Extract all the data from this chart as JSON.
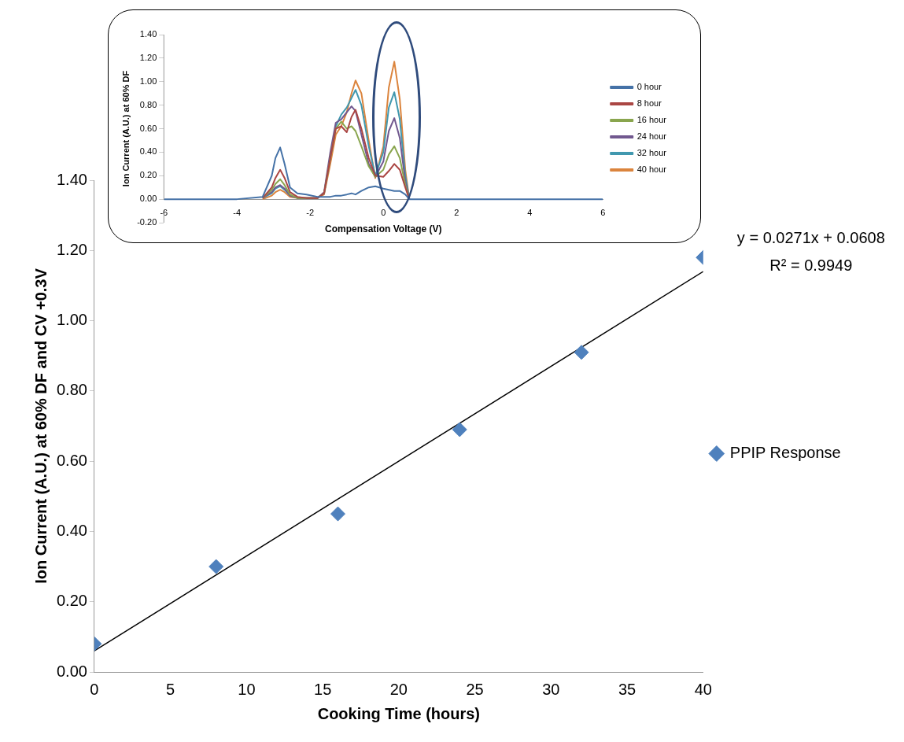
{
  "chart_data": [
    {
      "type": "scatter",
      "xlabel": "Cooking Time (hours)",
      "ylabel": "Ion Current (A.U.) at 60% DF and CV +0.3V",
      "xlim": [
        0,
        40
      ],
      "xticks": [
        0,
        5,
        10,
        15,
        20,
        25,
        30,
        35,
        40
      ],
      "ylim": [
        0,
        1.4
      ],
      "yticks": [
        {
          "value": 0,
          "label": "0.00"
        },
        {
          "value": 0.2,
          "label": "0.20"
        },
        {
          "value": 0.4,
          "label": "0.40"
        },
        {
          "value": 0.6,
          "label": "0.60"
        },
        {
          "value": 0.8,
          "label": "0.80"
        },
        {
          "value": 1,
          "label": "1.00"
        },
        {
          "value": 1.2,
          "label": "1.20"
        },
        {
          "value": 1.4,
          "label": "1.40"
        }
      ],
      "x": [
        0,
        8,
        16,
        24,
        32,
        40
      ],
      "series": [
        {
          "name": "PPIP Response",
          "color": "#4f81bd",
          "marker": "diamond",
          "values": [
            0.08,
            0.3,
            0.45,
            0.69,
            0.91,
            1.18
          ]
        },
        {
          "type": "line",
          "color": "#000000",
          "x": [
            0,
            40
          ],
          "values": [
            0.06,
            1.14
          ]
        }
      ],
      "annotations": [
        "y = 0.0271x + 0.0608",
        "R² = 0.9949"
      ],
      "grid": false,
      "legend": "right"
    },
    {
      "type": "line",
      "xlabel": "Compensation Voltage (V)",
      "ylabel": "Ion Current (A.U.) at 60% DF",
      "xlim": [
        -6,
        6
      ],
      "xticks": [
        -6,
        -4,
        -2,
        0,
        2,
        4,
        6
      ],
      "ylim": [
        -0.2,
        1.4
      ],
      "yticks": [
        {
          "value": -0.2,
          "label": "-0.20"
        },
        {
          "value": 0,
          "label": "0.00"
        },
        {
          "value": 0.2,
          "label": "0.20"
        },
        {
          "value": 0.4,
          "label": "0.40"
        },
        {
          "value": 0.6,
          "label": "0.60"
        },
        {
          "value": 0.8,
          "label": "0.80"
        },
        {
          "value": 1,
          "label": "1.00"
        },
        {
          "value": 1.2,
          "label": "1.20"
        },
        {
          "value": 1.4,
          "label": "1.40"
        }
      ],
      "x": [
        -6,
        -5,
        -4,
        -3.3,
        -3.05,
        -2.95,
        -2.82,
        -2.7,
        -2.55,
        -2.35,
        -2.1,
        -1.8,
        -1.62,
        -1.45,
        -1.3,
        -1.15,
        -1.0,
        -0.87,
        -0.76,
        -0.6,
        -0.4,
        -0.22,
        0,
        0.15,
        0.3,
        0.45,
        0.6,
        0.71,
        1,
        2,
        3,
        4,
        5,
        6
      ],
      "series": [
        {
          "name": "0 hour",
          "color": "#4572a7",
          "values": [
            0,
            0,
            0,
            0.02,
            0.2,
            0.35,
            0.44,
            0.3,
            0.1,
            0.05,
            0.04,
            0.02,
            0.02,
            0.02,
            0.03,
            0.03,
            0.04,
            0.05,
            0.04,
            0.07,
            0.1,
            0.11,
            0.09,
            0.08,
            0.07,
            0.07,
            0.04,
            0,
            0,
            0,
            0,
            0,
            0,
            0
          ]
        },
        {
          "name": "8 hour",
          "color": "#aa4643",
          "values": [
            null,
            null,
            null,
            0.01,
            0.1,
            0.18,
            0.25,
            0.18,
            0.06,
            0.02,
            0.01,
            0.01,
            0.05,
            0.35,
            0.6,
            0.62,
            0.57,
            0.7,
            0.76,
            0.6,
            0.35,
            0.2,
            0.19,
            0.24,
            0.3,
            0.25,
            0.1,
            0,
            null,
            null,
            null,
            null,
            null,
            null
          ]
        },
        {
          "name": "16 hour",
          "color": "#89a54e",
          "values": [
            null,
            null,
            null,
            0.01,
            0.08,
            0.13,
            0.17,
            0.12,
            0.04,
            0.01,
            0.01,
            0.01,
            0.05,
            0.35,
            0.6,
            0.66,
            0.6,
            0.62,
            0.58,
            0.45,
            0.28,
            0.19,
            0.25,
            0.38,
            0.45,
            0.35,
            0.12,
            0,
            null,
            null,
            null,
            null,
            null,
            null
          ]
        },
        {
          "name": "24 hour",
          "color": "#71588f",
          "values": [
            null,
            null,
            null,
            0.01,
            0.06,
            0.1,
            0.12,
            0.09,
            0.03,
            0.01,
            0.01,
            0.01,
            0.06,
            0.4,
            0.65,
            0.68,
            0.74,
            0.79,
            0.75,
            0.55,
            0.3,
            0.19,
            0.32,
            0.58,
            0.69,
            0.52,
            0.15,
            0,
            null,
            null,
            null,
            null,
            null,
            null
          ]
        },
        {
          "name": "32 hour",
          "color": "#4198af",
          "values": [
            null,
            null,
            null,
            0.01,
            0.05,
            0.09,
            0.11,
            0.08,
            0.03,
            0.01,
            0.01,
            0.01,
            0.05,
            0.35,
            0.62,
            0.72,
            0.78,
            0.86,
            0.93,
            0.8,
            0.45,
            0.2,
            0.4,
            0.78,
            0.91,
            0.68,
            0.2,
            0,
            null,
            null,
            null,
            null,
            null,
            null
          ]
        },
        {
          "name": "40 hour",
          "color": "#db843d",
          "values": [
            null,
            null,
            null,
            0,
            0.03,
            0.06,
            0.08,
            0.06,
            0.02,
            0.01,
            0.01,
            0.01,
            0.04,
            0.3,
            0.55,
            0.62,
            0.74,
            0.9,
            1.01,
            0.9,
            0.5,
            0.18,
            0.45,
            0.95,
            1.17,
            0.85,
            0.25,
            0,
            null,
            null,
            null,
            null,
            null,
            null
          ]
        }
      ],
      "grid": false,
      "legend": "right"
    }
  ]
}
